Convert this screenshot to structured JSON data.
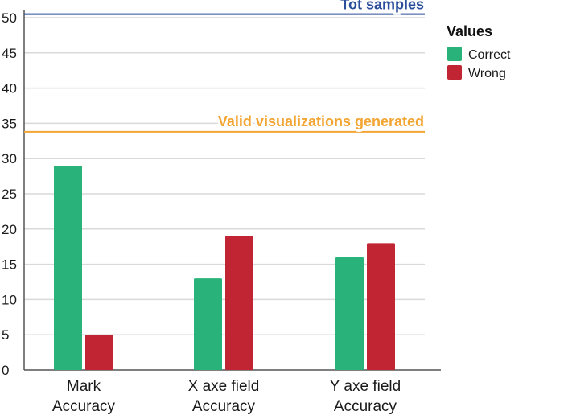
{
  "chart_data": {
    "type": "bar",
    "categories": [
      [
        "Mark",
        "Accuracy"
      ],
      [
        "X axe field",
        "Accuracy"
      ],
      [
        "Y axe field",
        "Accuracy"
      ]
    ],
    "series": [
      {
        "name": "Correct",
        "color": "#29b37a",
        "values": [
          29,
          13,
          16
        ]
      },
      {
        "name": "Wrong",
        "color": "#c12433",
        "values": [
          5,
          19,
          18
        ]
      }
    ],
    "ylim": [
      0,
      50
    ],
    "yticks": [
      0,
      5,
      10,
      15,
      20,
      25,
      30,
      35,
      40,
      45,
      50
    ],
    "grid": true,
    "legend": {
      "title": "Values",
      "placement": "right"
    },
    "reference_lines": [
      {
        "label": "Tot samples",
        "value": 50.5,
        "color": "#2b4e9b"
      },
      {
        "label": "Valid visualizations generated",
        "value": 33.8,
        "color": "#f3a533"
      }
    ]
  }
}
